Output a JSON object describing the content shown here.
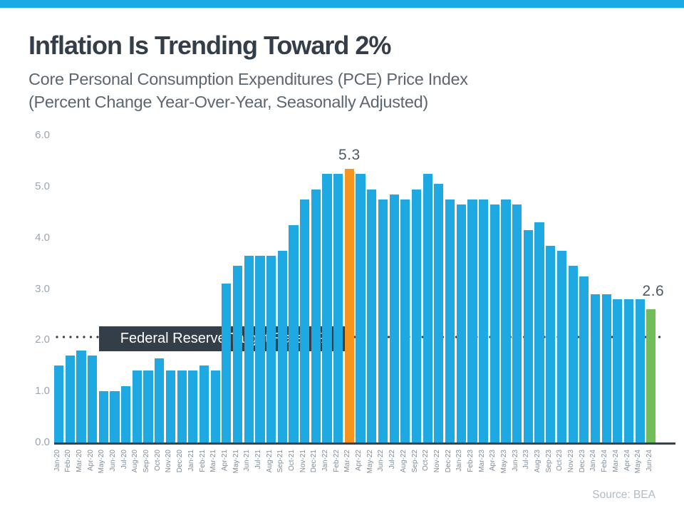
{
  "header": {
    "title": "Inflation Is Trending Toward 2%",
    "subtitle_line1": "Core Personal Consumption Expenditures (PCE) Price Index",
    "subtitle_line2": "(Percent Change Year-Over-Year, Seasonally Adjusted)"
  },
  "chart_data": {
    "type": "bar",
    "title": "Inflation Is Trending Toward 2%",
    "xlabel": "",
    "ylabel": "",
    "ylim": [
      0,
      6
    ],
    "grid": false,
    "yticks": [
      "0.0",
      "1.0",
      "2.0",
      "3.0",
      "4.0",
      "5.0",
      "6.0"
    ],
    "categories": [
      "Jan-20",
      "Feb-20",
      "Mar-20",
      "Apr-20",
      "May-20",
      "Jun-20",
      "Jul-20",
      "Aug-20",
      "Sep-20",
      "Oct-20",
      "Nov-20",
      "Dec-20",
      "Jan-21",
      "Feb-21",
      "Mar-21",
      "Apr-21",
      "May-21",
      "Jun-21",
      "Jul-21",
      "Aug-21",
      "Sep-21",
      "Oct-21",
      "Nov-21",
      "Dec-21",
      "Jan-22",
      "Feb-22",
      "Mar-22",
      "Apr-22",
      "May-22",
      "Jun-22",
      "Jul-22",
      "Aug-22",
      "Sep-22",
      "Oct-22",
      "Nov-22",
      "Dec-22",
      "Jan-23",
      "Feb-23",
      "Mar-23",
      "Apr-23",
      "May-23",
      "Jun-23",
      "Jul-23",
      "Aug-23",
      "Sep-23",
      "Oct-23",
      "Nov-23",
      "Dec-23",
      "Jan-24",
      "Feb-24",
      "Mar-24",
      "Apr-24",
      "May-24",
      "Jun-24"
    ],
    "values": [
      1.5,
      1.7,
      1.8,
      1.7,
      1.0,
      1.0,
      1.1,
      1.4,
      1.4,
      1.65,
      1.4,
      1.4,
      1.4,
      1.5,
      1.4,
      3.1,
      3.45,
      3.65,
      3.65,
      3.65,
      3.75,
      4.25,
      4.75,
      4.95,
      5.25,
      5.25,
      5.35,
      5.25,
      4.95,
      4.75,
      4.85,
      4.75,
      4.95,
      5.25,
      5.05,
      4.75,
      4.65,
      4.75,
      4.75,
      4.65,
      4.75,
      4.65,
      4.15,
      4.3,
      3.85,
      3.75,
      3.45,
      3.25,
      2.9,
      2.9,
      2.8,
      2.8,
      2.8,
      2.6
    ],
    "bar_color": "#1FA9E2",
    "axis_color": "#38424C",
    "tick_label_color": "#9AA5B0",
    "highlight": {
      "index": 26,
      "category": "Mar-22",
      "label": "5.3",
      "color": "#F7941E"
    },
    "last_bar": {
      "index": 53,
      "category": "Jun-24",
      "label": "2.6",
      "color": "#6FBE58"
    },
    "target_line": {
      "value": 2.0,
      "label": "Federal Reserve Target Rate: 2%",
      "color": "#333E48"
    },
    "legend_position": "none"
  },
  "accent": {
    "top_bar_color": "#1BAAE6"
  },
  "footer": {
    "source": "Source: BEA"
  }
}
